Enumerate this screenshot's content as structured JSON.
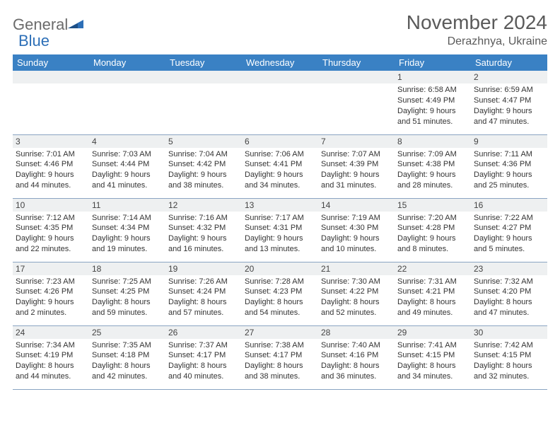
{
  "logo": {
    "general": "General",
    "blue": "Blue"
  },
  "title": "November 2024",
  "location": "Derazhnya, Ukraine",
  "header_bg": "#3a81c4",
  "daynum_bg": "#eef0f1",
  "border_color": "#8aa4c2",
  "day_headers": [
    "Sunday",
    "Monday",
    "Tuesday",
    "Wednesday",
    "Thursday",
    "Friday",
    "Saturday"
  ],
  "weeks": [
    [
      null,
      null,
      null,
      null,
      null,
      {
        "n": "1",
        "sr": "Sunrise: 6:58 AM",
        "ss": "Sunset: 4:49 PM",
        "d1": "Daylight: 9 hours",
        "d2": "and 51 minutes."
      },
      {
        "n": "2",
        "sr": "Sunrise: 6:59 AM",
        "ss": "Sunset: 4:47 PM",
        "d1": "Daylight: 9 hours",
        "d2": "and 47 minutes."
      }
    ],
    [
      {
        "n": "3",
        "sr": "Sunrise: 7:01 AM",
        "ss": "Sunset: 4:46 PM",
        "d1": "Daylight: 9 hours",
        "d2": "and 44 minutes."
      },
      {
        "n": "4",
        "sr": "Sunrise: 7:03 AM",
        "ss": "Sunset: 4:44 PM",
        "d1": "Daylight: 9 hours",
        "d2": "and 41 minutes."
      },
      {
        "n": "5",
        "sr": "Sunrise: 7:04 AM",
        "ss": "Sunset: 4:42 PM",
        "d1": "Daylight: 9 hours",
        "d2": "and 38 minutes."
      },
      {
        "n": "6",
        "sr": "Sunrise: 7:06 AM",
        "ss": "Sunset: 4:41 PM",
        "d1": "Daylight: 9 hours",
        "d2": "and 34 minutes."
      },
      {
        "n": "7",
        "sr": "Sunrise: 7:07 AM",
        "ss": "Sunset: 4:39 PM",
        "d1": "Daylight: 9 hours",
        "d2": "and 31 minutes."
      },
      {
        "n": "8",
        "sr": "Sunrise: 7:09 AM",
        "ss": "Sunset: 4:38 PM",
        "d1": "Daylight: 9 hours",
        "d2": "and 28 minutes."
      },
      {
        "n": "9",
        "sr": "Sunrise: 7:11 AM",
        "ss": "Sunset: 4:36 PM",
        "d1": "Daylight: 9 hours",
        "d2": "and 25 minutes."
      }
    ],
    [
      {
        "n": "10",
        "sr": "Sunrise: 7:12 AM",
        "ss": "Sunset: 4:35 PM",
        "d1": "Daylight: 9 hours",
        "d2": "and 22 minutes."
      },
      {
        "n": "11",
        "sr": "Sunrise: 7:14 AM",
        "ss": "Sunset: 4:34 PM",
        "d1": "Daylight: 9 hours",
        "d2": "and 19 minutes."
      },
      {
        "n": "12",
        "sr": "Sunrise: 7:16 AM",
        "ss": "Sunset: 4:32 PM",
        "d1": "Daylight: 9 hours",
        "d2": "and 16 minutes."
      },
      {
        "n": "13",
        "sr": "Sunrise: 7:17 AM",
        "ss": "Sunset: 4:31 PM",
        "d1": "Daylight: 9 hours",
        "d2": "and 13 minutes."
      },
      {
        "n": "14",
        "sr": "Sunrise: 7:19 AM",
        "ss": "Sunset: 4:30 PM",
        "d1": "Daylight: 9 hours",
        "d2": "and 10 minutes."
      },
      {
        "n": "15",
        "sr": "Sunrise: 7:20 AM",
        "ss": "Sunset: 4:28 PM",
        "d1": "Daylight: 9 hours",
        "d2": "and 8 minutes."
      },
      {
        "n": "16",
        "sr": "Sunrise: 7:22 AM",
        "ss": "Sunset: 4:27 PM",
        "d1": "Daylight: 9 hours",
        "d2": "and 5 minutes."
      }
    ],
    [
      {
        "n": "17",
        "sr": "Sunrise: 7:23 AM",
        "ss": "Sunset: 4:26 PM",
        "d1": "Daylight: 9 hours",
        "d2": "and 2 minutes."
      },
      {
        "n": "18",
        "sr": "Sunrise: 7:25 AM",
        "ss": "Sunset: 4:25 PM",
        "d1": "Daylight: 8 hours",
        "d2": "and 59 minutes."
      },
      {
        "n": "19",
        "sr": "Sunrise: 7:26 AM",
        "ss": "Sunset: 4:24 PM",
        "d1": "Daylight: 8 hours",
        "d2": "and 57 minutes."
      },
      {
        "n": "20",
        "sr": "Sunrise: 7:28 AM",
        "ss": "Sunset: 4:23 PM",
        "d1": "Daylight: 8 hours",
        "d2": "and 54 minutes."
      },
      {
        "n": "21",
        "sr": "Sunrise: 7:30 AM",
        "ss": "Sunset: 4:22 PM",
        "d1": "Daylight: 8 hours",
        "d2": "and 52 minutes."
      },
      {
        "n": "22",
        "sr": "Sunrise: 7:31 AM",
        "ss": "Sunset: 4:21 PM",
        "d1": "Daylight: 8 hours",
        "d2": "and 49 minutes."
      },
      {
        "n": "23",
        "sr": "Sunrise: 7:32 AM",
        "ss": "Sunset: 4:20 PM",
        "d1": "Daylight: 8 hours",
        "d2": "and 47 minutes."
      }
    ],
    [
      {
        "n": "24",
        "sr": "Sunrise: 7:34 AM",
        "ss": "Sunset: 4:19 PM",
        "d1": "Daylight: 8 hours",
        "d2": "and 44 minutes."
      },
      {
        "n": "25",
        "sr": "Sunrise: 7:35 AM",
        "ss": "Sunset: 4:18 PM",
        "d1": "Daylight: 8 hours",
        "d2": "and 42 minutes."
      },
      {
        "n": "26",
        "sr": "Sunrise: 7:37 AM",
        "ss": "Sunset: 4:17 PM",
        "d1": "Daylight: 8 hours",
        "d2": "and 40 minutes."
      },
      {
        "n": "27",
        "sr": "Sunrise: 7:38 AM",
        "ss": "Sunset: 4:17 PM",
        "d1": "Daylight: 8 hours",
        "d2": "and 38 minutes."
      },
      {
        "n": "28",
        "sr": "Sunrise: 7:40 AM",
        "ss": "Sunset: 4:16 PM",
        "d1": "Daylight: 8 hours",
        "d2": "and 36 minutes."
      },
      {
        "n": "29",
        "sr": "Sunrise: 7:41 AM",
        "ss": "Sunset: 4:15 PM",
        "d1": "Daylight: 8 hours",
        "d2": "and 34 minutes."
      },
      {
        "n": "30",
        "sr": "Sunrise: 7:42 AM",
        "ss": "Sunset: 4:15 PM",
        "d1": "Daylight: 8 hours",
        "d2": "and 32 minutes."
      }
    ]
  ]
}
